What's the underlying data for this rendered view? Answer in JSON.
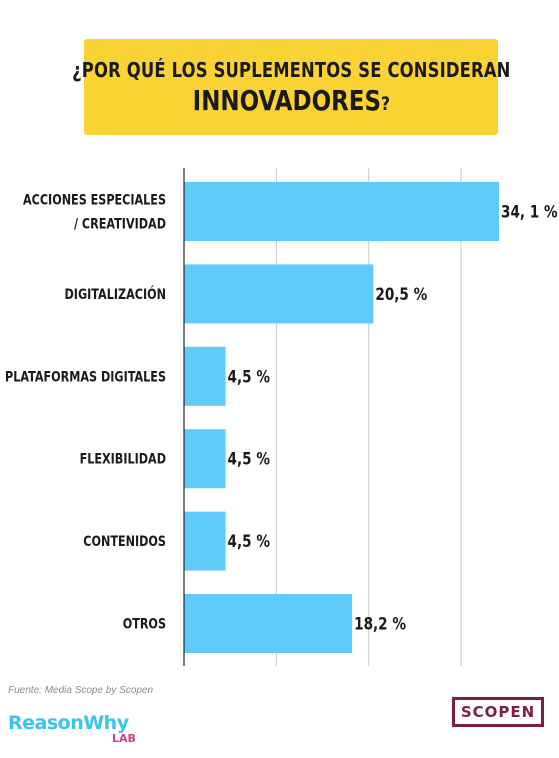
{
  "header": {
    "title_line1": "¿POR QUÉ LOS SUPLEMENTOS SE CONSIDERAN",
    "title_line2": "INNOVADORES",
    "title_qmark": "?"
  },
  "chart_data": {
    "type": "bar",
    "orientation": "horizontal",
    "title": "¿POR QUÉ LOS SUPLEMENTOS SE CONSIDERAN INNOVADORES?",
    "categories": [
      [
        "ACCIONES ESPECIALES",
        "/ CREATIVIDAD"
      ],
      [
        "DIGITALIZACIÓN"
      ],
      [
        "PLATAFORMAS DIGITALES"
      ],
      [
        "FLEXIBILIDAD"
      ],
      [
        "CONTENIDOS"
      ],
      [
        "OTROS"
      ]
    ],
    "values": [
      34.1,
      20.5,
      4.5,
      4.5,
      4.5,
      18.2
    ],
    "value_labels": [
      "34, 1 %",
      "20,5 %",
      "4,5 %",
      "4,5 %",
      "4,5 %",
      "18,2 %"
    ],
    "xlim": [
      0,
      40
    ],
    "grid": true,
    "bar_color": "#5ecbfb",
    "grid_color": "#c8c8c8"
  },
  "footer": {
    "source": "Fuente: Media Scope by Scopen",
    "brand_logo": "ReasonWhy",
    "brand_sub": "LAB",
    "partner_logo": "SCOPEN"
  },
  "colors": {
    "title_bg": "#f9d334",
    "brand_blue": "#39c4ee",
    "brand_pink": "#d83a86",
    "scopen_maroon": "#7b1f44"
  }
}
